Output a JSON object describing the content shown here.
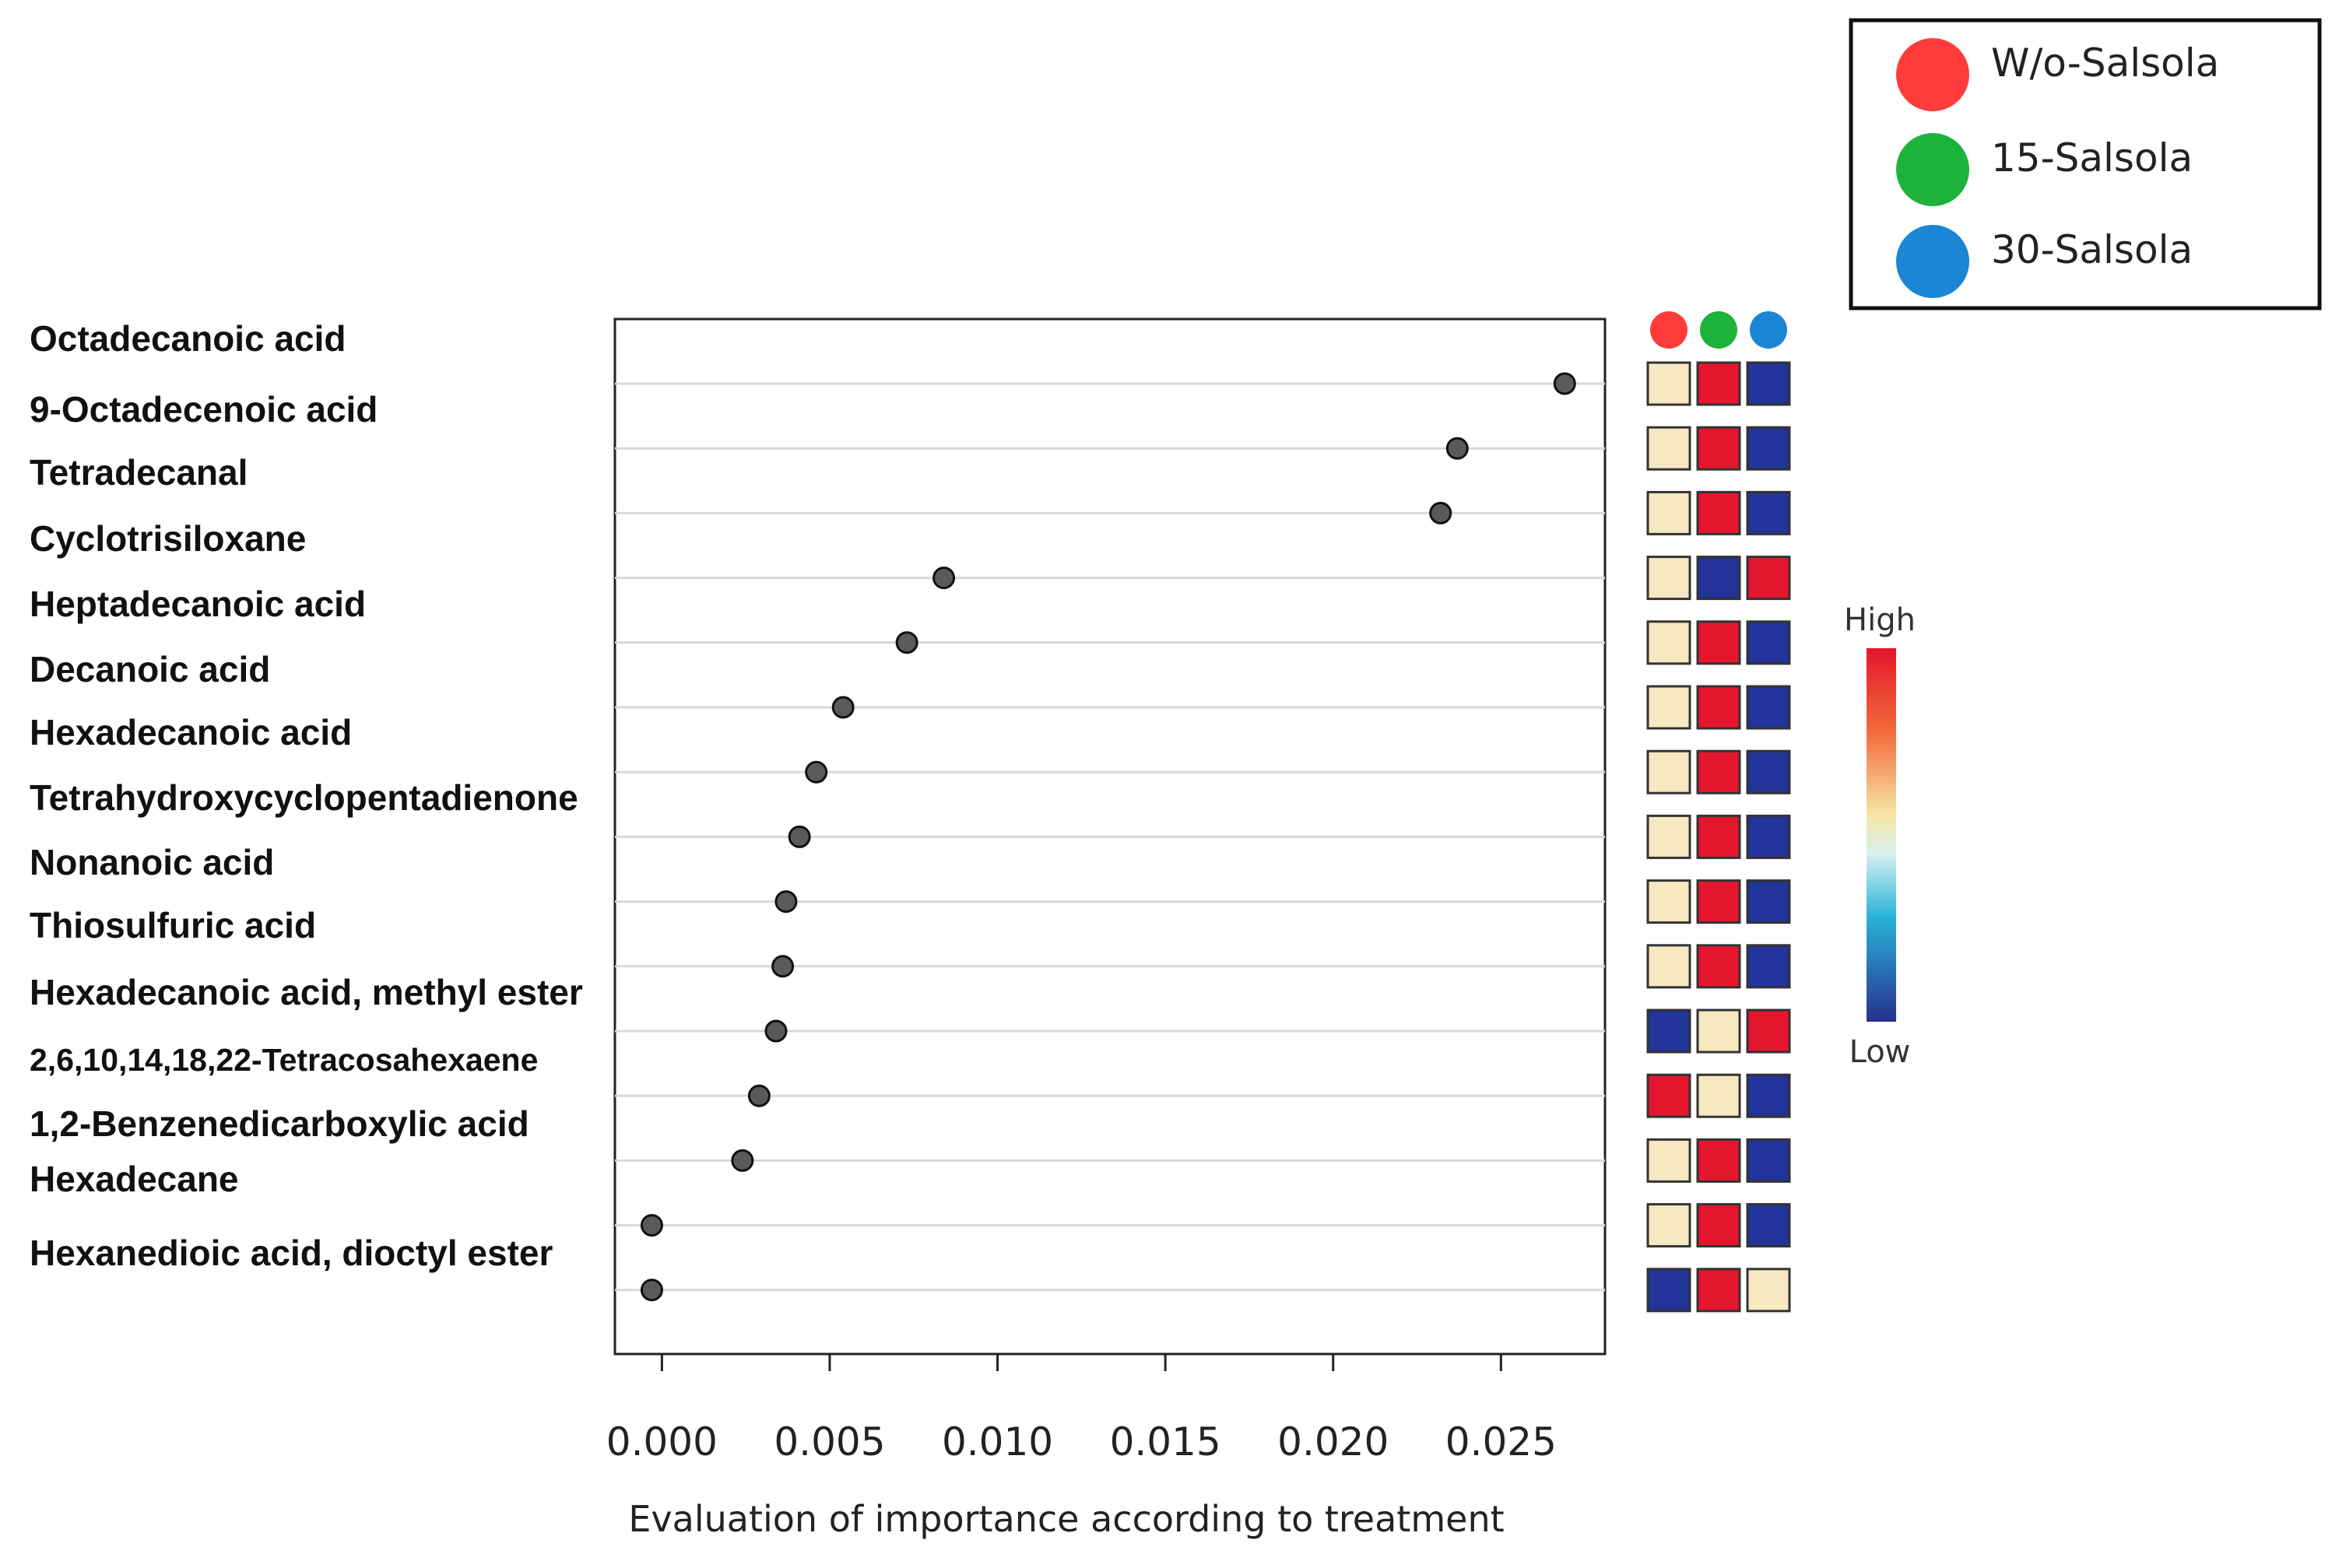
{
  "chart_data": {
    "type": "scatter",
    "subtype": "dot-plot (variable importance) with treatment heatmap",
    "xlabel": "Evaluation of importance according to treatment",
    "ylabel": "",
    "xlim": [
      -0.0014,
      0.0281
    ],
    "xticks": [
      "0.000",
      "0.005",
      "0.010",
      "0.015",
      "0.020",
      "0.025"
    ],
    "xtick_values": [
      0.0,
      0.005,
      0.01,
      0.015,
      0.02,
      0.025
    ],
    "grid": "horizontal",
    "labels": [
      "Octadecanoic acid",
      "9-Octadecenoic acid",
      "Tetradecanal",
      "Cyclotrisiloxane",
      "Heptadecanoic acid",
      "Decanoic acid",
      "Hexadecanoic acid",
      "Tetrahydroxycyclopentadienone",
      "Nonanoic acid",
      "Thiosulfuric acid",
      "Hexadecanoic acid, methyl ester",
      "2,6,10,14,18,22-Tetracosahexaene",
      "1,2-Benzenedicarboxylic acid",
      "Hexadecane",
      "Hexanedioic acid, dioctyl ester"
    ],
    "values": [
      0.0269,
      0.0237,
      0.0232,
      0.0084,
      0.0073,
      0.0054,
      0.0046,
      0.0041,
      0.0037,
      0.0036,
      0.0034,
      0.0029,
      0.0024,
      -0.0003,
      -0.0003
    ],
    "point_color": "#5a5a5a",
    "treatments": [
      "W/o-Salsola",
      "15-Salsola",
      "30-Salsola"
    ],
    "treatment_colors": [
      "#ff3b3b",
      "#1db33a",
      "#1a86d4"
    ],
    "heatmap": [
      [
        "mid",
        "high",
        "low"
      ],
      [
        "mid",
        "high",
        "low"
      ],
      [
        "mid",
        "high",
        "low"
      ],
      [
        "mid",
        "low",
        "high"
      ],
      [
        "mid",
        "high",
        "low"
      ],
      [
        "mid",
        "high",
        "low"
      ],
      [
        "mid",
        "high",
        "low"
      ],
      [
        "mid",
        "high",
        "low"
      ],
      [
        "mid",
        "high",
        "low"
      ],
      [
        "mid",
        "high",
        "low"
      ],
      [
        "low",
        "mid",
        "high"
      ],
      [
        "high",
        "mid",
        "low"
      ],
      [
        "mid",
        "high",
        "low"
      ],
      [
        "mid",
        "high",
        "low"
      ],
      [
        "low",
        "high",
        "mid"
      ]
    ],
    "heat_colors": {
      "high": "#e3162d",
      "mid": "#f6e8c0",
      "low": "#223399"
    },
    "colorbar": {
      "high_label": "High",
      "low_label": "Low"
    },
    "legend": {
      "placement": "top-right",
      "entries": [
        "W/o-Salsola",
        "15-Salsola",
        "30-Salsola"
      ]
    }
  }
}
